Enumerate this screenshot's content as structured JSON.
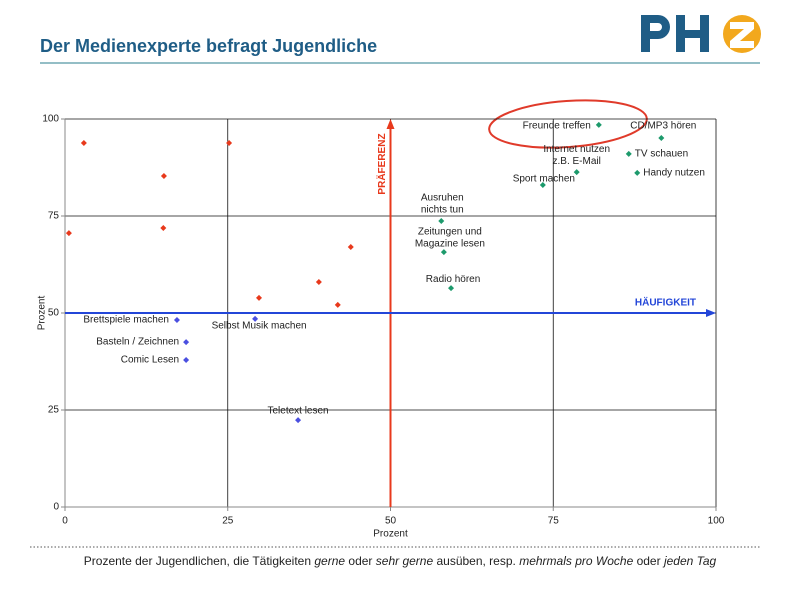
{
  "title": "Der Medienexperte  befragt Jugendliche",
  "chart_data": {
    "type": "scatter",
    "xlabel": "Prozent",
    "ylabel": "Prozent",
    "xlim": [
      0,
      100
    ],
    "ylim": [
      0,
      100
    ],
    "xticks": [
      0,
      25,
      50,
      75,
      100
    ],
    "yticks": [
      0,
      25,
      50,
      75,
      100
    ],
    "grid": true,
    "reference_lines": [
      {
        "axis": "x",
        "value": 50,
        "text": "PRÄFERENZ",
        "color": "#e8391c"
      },
      {
        "axis": "y",
        "value": 50,
        "text": "HÄUFIGKEIT",
        "color": "#2346d8"
      }
    ],
    "series": [
      {
        "color": "#e8391c",
        "x": [
          2.9,
          0.6,
          15.2,
          15.1,
          25.2,
          29.8,
          43.9,
          39.0,
          41.9
        ],
        "values": [
          93.8,
          70.6,
          85.3,
          71.9,
          93.8,
          53.9,
          67.0,
          58.0,
          52.1
        ]
      },
      {
        "color": "#4a4fe0",
        "x": [
          17.2,
          18.6,
          18.6,
          29.2,
          35.8
        ],
        "values": [
          48.2,
          42.5,
          37.9,
          48.5,
          22.4
        ],
        "labels": [
          [
            "Brettspiele machen"
          ],
          [
            "Basteln / Zeichnen"
          ],
          [
            "Comic Lesen"
          ],
          [
            "Selbst Musik machen"
          ],
          [
            "Teletext lesen"
          ]
        ]
      },
      {
        "color": "#1d9a6c",
        "x": [
          82.0,
          91.6,
          78.6,
          86.6,
          87.9,
          73.4,
          57.8,
          58.2,
          59.3
        ],
        "values": [
          98.5,
          95.1,
          86.3,
          91.0,
          86.1,
          83.0,
          73.7,
          65.7,
          56.4
        ],
        "labels": [
          [
            "Freunde treffen"
          ],
          [
            "CD/MP3 hören"
          ],
          [
            "Internet nutzen",
            "z.B. E-Mail"
          ],
          [
            "TV schauen"
          ],
          [
            "Handy nutzen"
          ],
          [
            "Sport machen"
          ],
          [
            "Ausruhen",
            "nichts tun"
          ],
          [
            "Zeitungen und",
            "Magazine lesen"
          ],
          [
            "Radio hören"
          ]
        ]
      }
    ]
  },
  "caption": [
    {
      "text": "Prozente der Jugendlichen, die Tätigkeiten ",
      "italic": false
    },
    {
      "text": "gerne",
      "italic": true
    },
    {
      "text": " oder ",
      "italic": false
    },
    {
      "text": "sehr gerne",
      "italic": true
    },
    {
      "text": " ausüben, resp. ",
      "italic": false
    },
    {
      "text": "mehrmals pro Woche",
      "italic": true
    },
    {
      "text": " oder ",
      "italic": false
    },
    {
      "text": "jeden Tag",
      "italic": true
    }
  ]
}
